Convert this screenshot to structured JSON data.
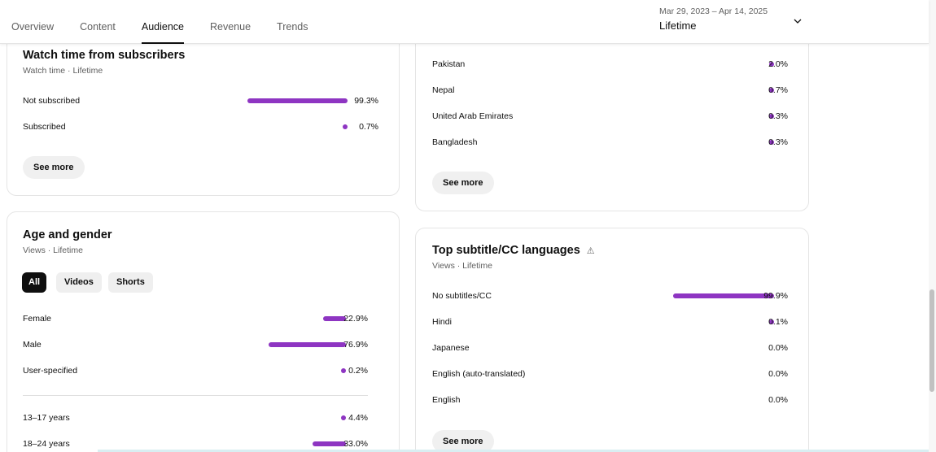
{
  "tabs": [
    "Overview",
    "Content",
    "Audience",
    "Revenue",
    "Trends"
  ],
  "active_tab": "Audience",
  "date_range": {
    "dates": "Mar 29, 2023 – Apr 14, 2025",
    "period": "Lifetime"
  },
  "accent_color": "#8e35c2",
  "watch_time": {
    "title": "Watch time from subscribers",
    "subtitle": "Watch time · Lifetime",
    "rows": [
      {
        "label": "Not subscribed",
        "pct": "99.3%",
        "value": 99.3
      },
      {
        "label": "Subscribed",
        "pct": "0.7%",
        "value": 0.7
      }
    ],
    "see_more": "See more"
  },
  "geography": {
    "rows": [
      {
        "label": "Pakistan",
        "pct": "2.0%",
        "value": 2.0
      },
      {
        "label": "Nepal",
        "pct": "0.7%",
        "value": 0.7
      },
      {
        "label": "United Arab Emirates",
        "pct": "0.3%",
        "value": 0.3
      },
      {
        "label": "Bangladesh",
        "pct": "0.3%",
        "value": 0.3
      }
    ],
    "see_more": "See more"
  },
  "age_gender": {
    "title": "Age and gender",
    "subtitle": "Views · Lifetime",
    "chips": [
      "All",
      "Videos",
      "Shorts"
    ],
    "active_chip": "All",
    "gender_rows": [
      {
        "label": "Female",
        "pct": "22.9%",
        "value": 22.9
      },
      {
        "label": "Male",
        "pct": "76.9%",
        "value": 76.9
      },
      {
        "label": "User-specified",
        "pct": "0.2%",
        "value": 0.2
      }
    ],
    "age_rows": [
      {
        "label": "13–17 years",
        "pct": "4.4%",
        "value": 4.4
      },
      {
        "label": "18–24 years",
        "pct": "33.0%",
        "value": 33.0
      }
    ]
  },
  "subtitles": {
    "title": "Top subtitle/CC languages",
    "warning_icon": "warning-icon",
    "subtitle": "Views · Lifetime",
    "rows": [
      {
        "label": "No subtitles/CC",
        "pct": "99.9%",
        "value": 99.9
      },
      {
        "label": "Hindi",
        "pct": "0.1%",
        "value": 0.1
      },
      {
        "label": "Japanese",
        "pct": "0.0%",
        "value": 0.0
      },
      {
        "label": "English (auto-translated)",
        "pct": "0.0%",
        "value": 0.0
      },
      {
        "label": "English",
        "pct": "0.0%",
        "value": 0.0
      }
    ],
    "see_more": "See more"
  }
}
